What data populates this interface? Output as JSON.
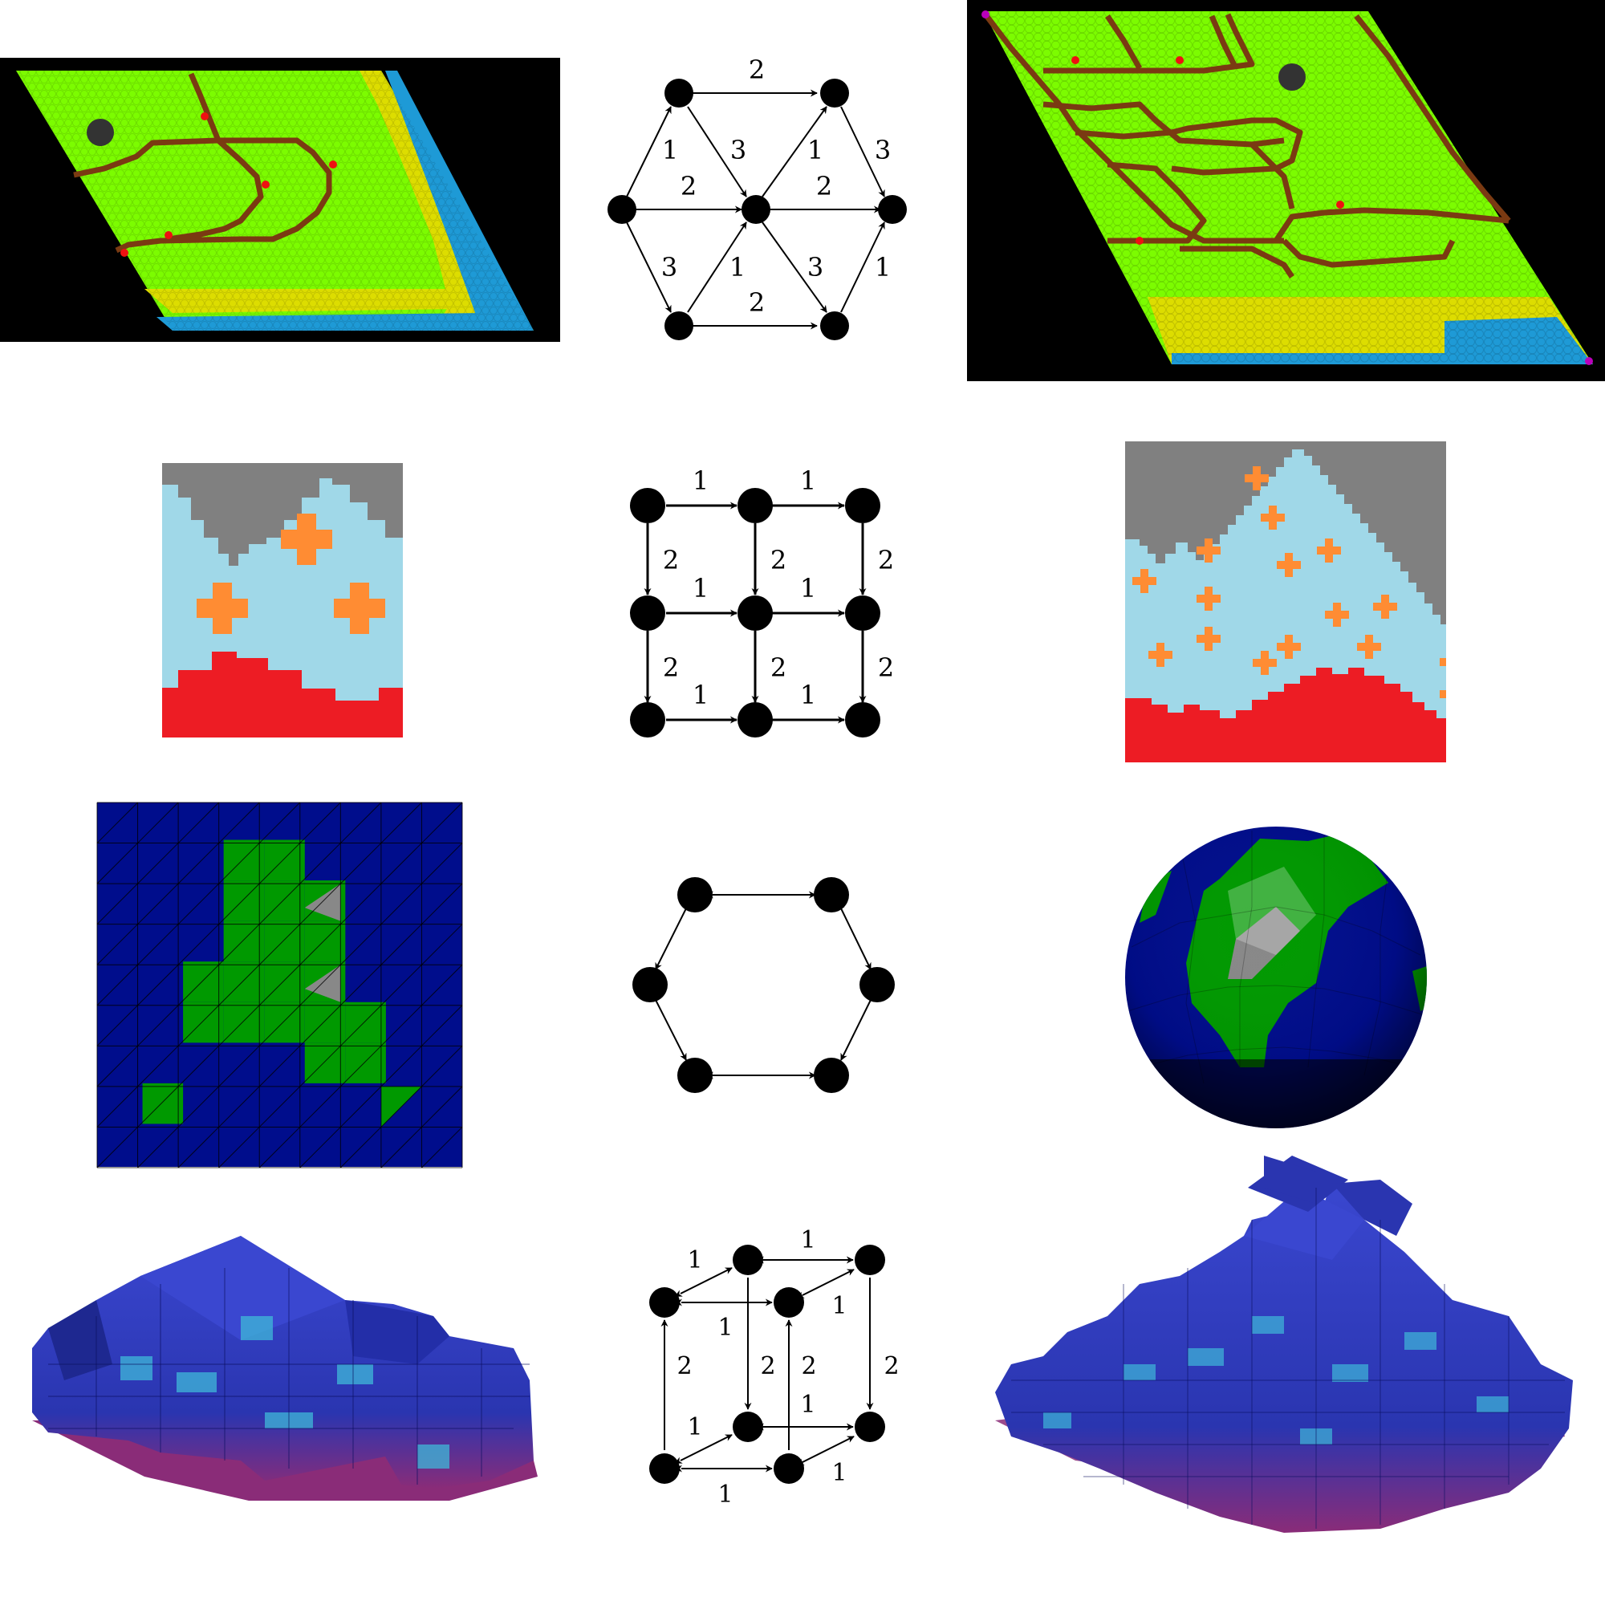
{
  "figure": {
    "rows": [
      {
        "name": "hexagonal-lattice",
        "left_panel": "hex tile map example (input)",
        "right_panel": "hex tile map example (output)",
        "graph": {
          "directed_edge_labels": [
            "2",
            "1",
            "3",
            "1",
            "3",
            "2",
            "2",
            "3",
            "1",
            "3",
            "1",
            "2"
          ]
        }
      },
      {
        "name": "square-lattice",
        "left_panel": "square tile map example (input)",
        "right_panel": "square tile map example (output)",
        "graph": {
          "directed_edge_labels": [
            "1",
            "1",
            "2",
            "2",
            "2",
            "1",
            "1",
            "2",
            "2",
            "2",
            "1",
            "1"
          ]
        }
      },
      {
        "name": "triangle-mesh",
        "left_panel": "triangle grid texture (input)",
        "right_panel": "textured sphere (output)",
        "graph": {
          "directed_edge_labels": []
        }
      },
      {
        "name": "cubic-lattice",
        "left_panel": "voxel structure (input)",
        "right_panel": "voxel structure (output)",
        "graph": {
          "directed_edge_labels": [
            "1",
            "1",
            "1",
            "1",
            "2",
            "2",
            "2",
            "2",
            "1",
            "1",
            "1",
            "1"
          ]
        }
      }
    ],
    "colors": {
      "hex_grass": "#7cfc00",
      "hex_sand": "#dddd00",
      "hex_water": "#1e9ad6",
      "hex_road": "#7a3a12",
      "hex_marker": "#ee1111",
      "hex_rock": "#333333",
      "square_gray": "#808080",
      "square_sky": "#a0d8e8",
      "square_lava": "#ed1c24",
      "square_cross": "#ff8c33",
      "mesh_water": "#000d8c",
      "mesh_land": "#009900",
      "mesh_rock": "#888888",
      "voxel_blue": "#2a35b0",
      "voxel_magenta": "#8a2c78",
      "voxel_cyan": "#3fb8d8"
    }
  }
}
